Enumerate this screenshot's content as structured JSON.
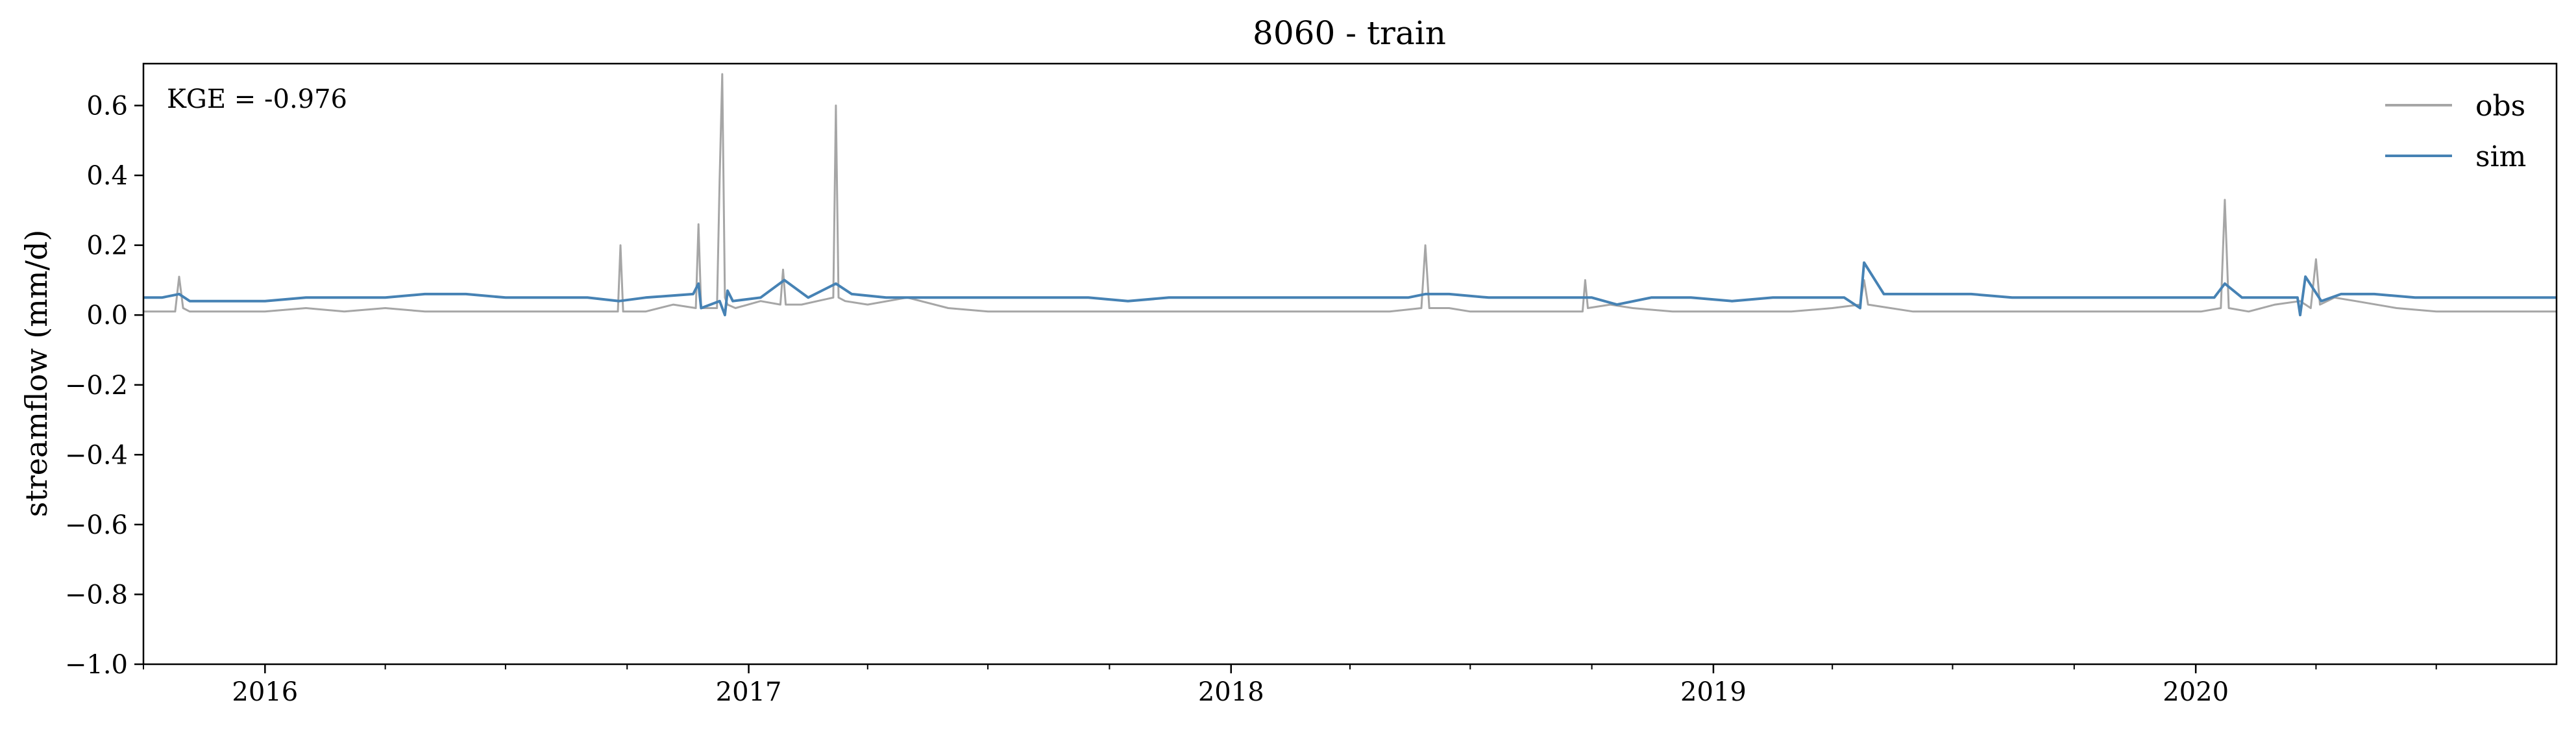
{
  "chart_data": {
    "type": "line",
    "title": "8060 - train",
    "xlabel": "",
    "ylabel": "streamflow (mm/d)",
    "annotation": "KGE = -0.976",
    "xlim": [
      "2015-10-01",
      "2020-09-30"
    ],
    "ylim": [
      -1.0,
      0.72
    ],
    "y_ticks": [
      0.6,
      0.4,
      0.2,
      0.0,
      -0.2,
      -0.4,
      -0.6,
      -0.8,
      -1.0
    ],
    "y_tick_labels": [
      "0.6",
      "0.4",
      "0.2",
      "0.0",
      "−0.2",
      "−0.4",
      "−0.6",
      "−0.8",
      "−1.0"
    ],
    "x_ticks": [
      "2016-01-01",
      "2017-01-01",
      "2018-01-01",
      "2019-01-01",
      "2020-01-01"
    ],
    "x_tick_labels": [
      "2016",
      "2017",
      "2018",
      "2019",
      "2020"
    ],
    "grid": false,
    "legend": "top-right",
    "colors": {
      "obs": "#a6a6a6",
      "sim": "#4682b4"
    },
    "series": [
      {
        "name": "obs",
        "x": [
          "2015-10-01",
          "2015-10-25",
          "2015-10-28",
          "2015-10-31",
          "2015-11-05",
          "2015-12-01",
          "2016-01-01",
          "2016-02-01",
          "2016-03-01",
          "2016-04-01",
          "2016-05-01",
          "2016-06-01",
          "2016-07-01",
          "2016-08-01",
          "2016-09-01",
          "2016-09-24",
          "2016-09-26",
          "2016-09-28",
          "2016-10-15",
          "2016-11-05",
          "2016-11-22",
          "2016-11-24",
          "2016-11-26",
          "2016-12-08",
          "2016-12-10",
          "2016-12-12",
          "2016-12-14",
          "2016-12-16",
          "2016-12-22",
          "2017-01-10",
          "2017-01-25",
          "2017-01-27",
          "2017-01-29",
          "2017-02-10",
          "2017-03-06",
          "2017-03-08",
          "2017-03-10",
          "2017-03-15",
          "2017-04-01",
          "2017-05-01",
          "2017-06-01",
          "2017-07-01",
          "2017-08-01",
          "2017-09-01",
          "2017-10-01",
          "2017-11-01",
          "2017-12-01",
          "2018-01-01",
          "2018-02-01",
          "2018-03-01",
          "2018-04-01",
          "2018-05-01",
          "2018-05-25",
          "2018-05-28",
          "2018-05-31",
          "2018-06-15",
          "2018-07-01",
          "2018-08-01",
          "2018-09-01",
          "2018-09-24",
          "2018-09-26",
          "2018-09-28",
          "2018-10-15",
          "2018-11-01",
          "2018-12-01",
          "2019-01-01",
          "2019-02-01",
          "2019-03-01",
          "2019-04-01",
          "2019-04-22",
          "2019-04-25",
          "2019-04-28",
          "2019-05-15",
          "2019-06-01",
          "2019-07-01",
          "2019-08-01",
          "2019-09-01",
          "2019-10-01",
          "2019-11-01",
          "2019-12-01",
          "2020-01-05",
          "2020-01-20",
          "2020-01-23",
          "2020-01-26",
          "2020-02-10",
          "2020-03-01",
          "2020-03-20",
          "2020-03-28",
          "2020-04-01",
          "2020-04-04",
          "2020-04-15",
          "2020-05-01",
          "2020-06-01",
          "2020-07-01",
          "2020-08-01",
          "2020-09-01",
          "2020-09-30"
        ],
        "y": [
          0.01,
          0.01,
          0.11,
          0.02,
          0.01,
          0.01,
          0.01,
          0.02,
          0.01,
          0.02,
          0.01,
          0.01,
          0.01,
          0.01,
          0.01,
          0.01,
          0.2,
          0.01,
          0.01,
          0.03,
          0.02,
          0.26,
          0.02,
          0.02,
          0.39,
          0.69,
          0.05,
          0.03,
          0.02,
          0.04,
          0.03,
          0.13,
          0.03,
          0.03,
          0.05,
          0.6,
          0.05,
          0.04,
          0.03,
          0.05,
          0.02,
          0.01,
          0.01,
          0.01,
          0.01,
          0.01,
          0.01,
          0.01,
          0.01,
          0.01,
          0.01,
          0.01,
          0.02,
          0.2,
          0.02,
          0.02,
          0.01,
          0.01,
          0.01,
          0.01,
          0.1,
          0.02,
          0.03,
          0.02,
          0.01,
          0.01,
          0.01,
          0.01,
          0.02,
          0.03,
          0.1,
          0.03,
          0.02,
          0.01,
          0.01,
          0.01,
          0.01,
          0.01,
          0.01,
          0.01,
          0.01,
          0.02,
          0.33,
          0.02,
          0.01,
          0.03,
          0.04,
          0.02,
          0.16,
          0.03,
          0.05,
          0.04,
          0.02,
          0.01,
          0.01,
          0.01,
          0.01
        ]
      },
      {
        "name": "sim",
        "x": [
          "2015-10-01",
          "2015-10-15",
          "2015-10-28",
          "2015-11-05",
          "2015-12-01",
          "2016-01-01",
          "2016-02-01",
          "2016-03-01",
          "2016-04-01",
          "2016-05-01",
          "2016-06-01",
          "2016-07-01",
          "2016-08-01",
          "2016-09-01",
          "2016-09-25",
          "2016-10-15",
          "2016-11-20",
          "2016-11-24",
          "2016-11-26",
          "2016-12-10",
          "2016-12-14",
          "2016-12-16",
          "2016-12-20",
          "2017-01-10",
          "2017-01-28",
          "2017-02-15",
          "2017-03-08",
          "2017-03-20",
          "2017-04-15",
          "2017-05-15",
          "2017-06-15",
          "2017-07-15",
          "2017-08-15",
          "2017-09-15",
          "2017-10-15",
          "2017-11-15",
          "2017-12-15",
          "2018-01-15",
          "2018-02-15",
          "2018-03-15",
          "2018-04-15",
          "2018-05-15",
          "2018-05-28",
          "2018-06-15",
          "2018-07-15",
          "2018-08-15",
          "2018-09-15",
          "2018-10-01",
          "2018-10-20",
          "2018-11-15",
          "2018-12-15",
          "2019-01-15",
          "2019-02-15",
          "2019-03-15",
          "2019-04-10",
          "2019-04-22",
          "2019-04-25",
          "2019-05-10",
          "2019-06-15",
          "2019-07-15",
          "2019-08-15",
          "2019-09-15",
          "2019-10-15",
          "2019-11-15",
          "2019-12-15",
          "2020-01-15",
          "2020-01-23",
          "2020-02-05",
          "2020-03-01",
          "2020-03-18",
          "2020-03-20",
          "2020-03-24",
          "2020-04-05",
          "2020-04-20",
          "2020-05-15",
          "2020-06-15",
          "2020-07-15",
          "2020-08-15",
          "2020-09-15",
          "2020-09-30"
        ],
        "y": [
          0.05,
          0.05,
          0.06,
          0.04,
          0.04,
          0.04,
          0.05,
          0.05,
          0.05,
          0.06,
          0.06,
          0.05,
          0.05,
          0.05,
          0.04,
          0.05,
          0.06,
          0.09,
          0.02,
          0.04,
          0.0,
          0.07,
          0.04,
          0.05,
          0.1,
          0.05,
          0.09,
          0.06,
          0.05,
          0.05,
          0.05,
          0.05,
          0.05,
          0.05,
          0.04,
          0.05,
          0.05,
          0.05,
          0.05,
          0.05,
          0.05,
          0.05,
          0.06,
          0.06,
          0.05,
          0.05,
          0.05,
          0.05,
          0.03,
          0.05,
          0.05,
          0.04,
          0.05,
          0.05,
          0.05,
          0.02,
          0.15,
          0.06,
          0.06,
          0.06,
          0.05,
          0.05,
          0.05,
          0.05,
          0.05,
          0.05,
          0.09,
          0.05,
          0.05,
          0.05,
          0.0,
          0.11,
          0.04,
          0.06,
          0.06,
          0.05,
          0.05,
          0.05,
          0.05,
          0.05
        ]
      }
    ]
  }
}
